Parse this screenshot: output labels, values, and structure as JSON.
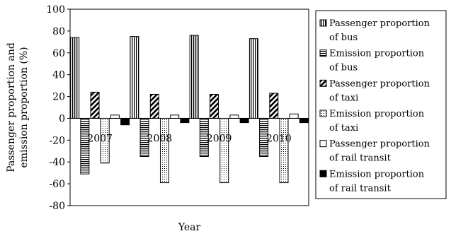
{
  "chart_data": {
    "type": "bar",
    "title": "",
    "xlabel": "Year",
    "ylabel": [
      "Passenger proportion and",
      "emission proportion (%)"
    ],
    "ylim": [
      -80,
      100
    ],
    "ytick_step": 20,
    "grid": false,
    "legend_position": "right",
    "categories": [
      "2007",
      "2008",
      "2009",
      "2010"
    ],
    "series": [
      {
        "name": [
          "Passenger proportion",
          "of bus"
        ],
        "pattern": "vertical-stripes",
        "values": [
          74,
          75,
          76,
          73
        ]
      },
      {
        "name": [
          "Emission proportion",
          "of bus"
        ],
        "pattern": "horizontal-stripes",
        "values": [
          -51,
          -35,
          -35,
          -35
        ]
      },
      {
        "name": [
          "Passenger proportion",
          "of taxi"
        ],
        "pattern": "diagonal-stripes",
        "values": [
          24,
          22,
          22,
          23
        ]
      },
      {
        "name": [
          "Emission proportion",
          "of taxi"
        ],
        "pattern": "dots",
        "values": [
          -41,
          -59,
          -59,
          -59
        ]
      },
      {
        "name": [
          "Passenger proportion",
          "of rail transit"
        ],
        "pattern": "white",
        "values": [
          3,
          3,
          3,
          4
        ]
      },
      {
        "name": [
          "Emission proportion",
          "of rail transit"
        ],
        "pattern": "black",
        "values": [
          -6,
          -4,
          -4,
          -4
        ]
      }
    ]
  }
}
